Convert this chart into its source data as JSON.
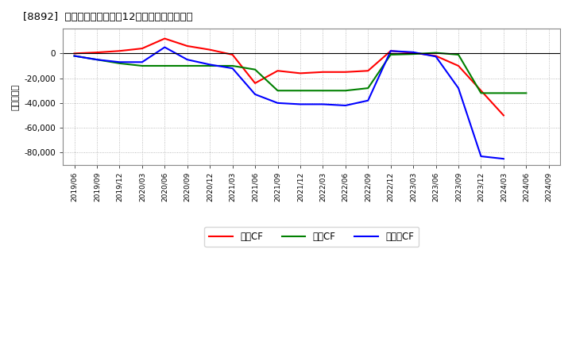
{
  "title": "[8892]  キャッシュフローの12か月移動合計の推移",
  "ylabel": "（百万円）",
  "background_color": "#ffffff",
  "plot_bg_color": "#ffffff",
  "grid_color": "#aaaaaa",
  "ylim": [
    -90000,
    20000
  ],
  "yticks": [
    -80000,
    -60000,
    -40000,
    -20000,
    0
  ],
  "dates": [
    "2019/06",
    "2019/09",
    "2019/12",
    "2020/03",
    "2020/06",
    "2020/09",
    "2020/12",
    "2021/03",
    "2021/06",
    "2021/09",
    "2021/12",
    "2022/03",
    "2022/06",
    "2022/09",
    "2022/12",
    "2023/03",
    "2023/06",
    "2023/09",
    "2023/12",
    "2024/03",
    "2024/06",
    "2024/09"
  ],
  "operating_cf": [
    0,
    800,
    2000,
    4000,
    12000,
    6000,
    3000,
    -1000,
    -24000,
    -14000,
    -16000,
    -15000,
    -15000,
    -14000,
    2000,
    500,
    -2000,
    -10000,
    -30000,
    -50000,
    null,
    null
  ],
  "investing_cf": [
    -2000,
    -5000,
    -8000,
    -10000,
    -10000,
    -10000,
    -10000,
    -10000,
    -13000,
    -30000,
    -30000,
    -30000,
    -30000,
    -28000,
    -1000,
    -500,
    500,
    -1000,
    -32000,
    -32000,
    -32000,
    null
  ],
  "free_cf": [
    -2000,
    -5000,
    -7000,
    -7000,
    5000,
    -5000,
    -9000,
    -12000,
    -33000,
    -40000,
    -41000,
    -41000,
    -42000,
    -38000,
    2000,
    1000,
    -2500,
    -28000,
    -83000,
    -85000,
    null,
    null
  ],
  "operating_color": "#ff0000",
  "investing_color": "#008000",
  "free_color": "#0000ff",
  "line_width": 1.5,
  "legend_labels": [
    "営業CF",
    "投資CF",
    "フリーCF"
  ]
}
